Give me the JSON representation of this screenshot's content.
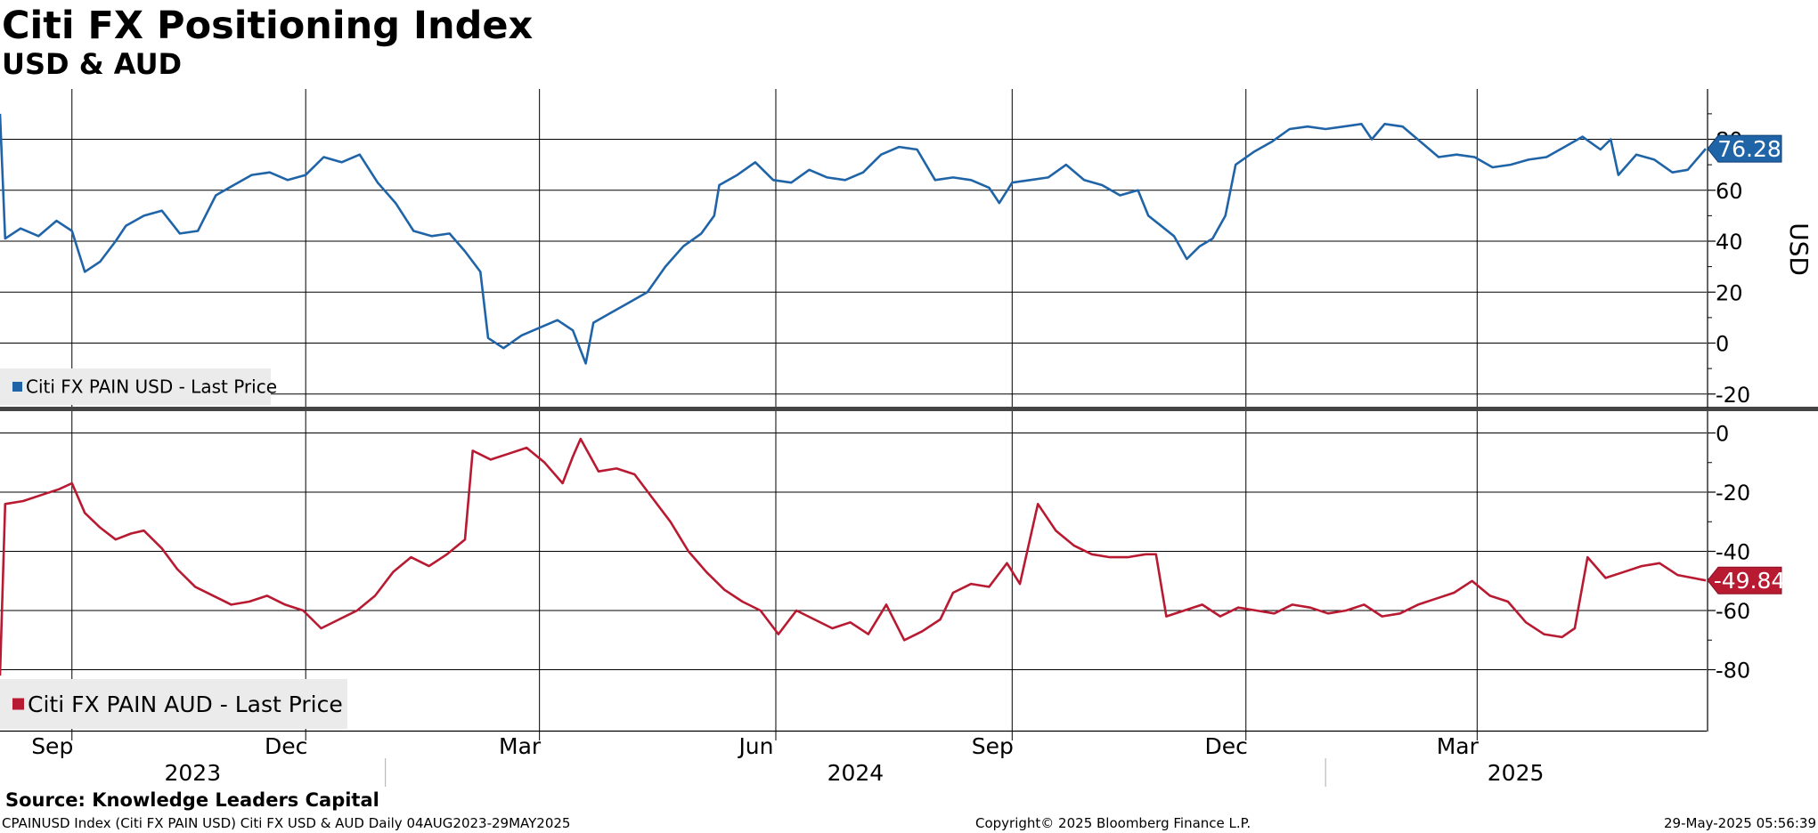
{
  "title": "Citi FX Positioning Index",
  "subtitle": "USD & AUD",
  "source": "Source: Knowledge Leaders Capital",
  "footer": {
    "left": "CPAINUSD Index (Citi FX PAIN USD) Citi FX USD & AUD  Daily 04AUG2023-29MAY2025",
    "center": "Copyright© 2025 Bloomberg Finance L.P.",
    "right": "29-May-2025 05:56:39"
  },
  "chart_data": [
    {
      "type": "line",
      "ylabel": "USD",
      "ylim": [
        -20,
        100
      ],
      "yticks": [
        -20,
        0,
        20,
        40,
        60,
        80
      ],
      "legend": {
        "text": "Citi FX PAIN USD - Last Price",
        "placement": "bottom-left"
      },
      "last_value": "76.28",
      "series": [
        {
          "name": "Citi FX PAIN USD - Last Price",
          "color": "#2064a8",
          "points": [
            [
              "2023-08-04",
              90
            ],
            [
              "2023-08-06",
              41
            ],
            [
              "2023-08-12",
              45
            ],
            [
              "2023-08-19",
              42
            ],
            [
              "2023-08-26",
              48
            ],
            [
              "2023-09-01",
              44
            ],
            [
              "2023-09-06",
              28
            ],
            [
              "2023-09-12",
              32
            ],
            [
              "2023-09-18",
              40
            ],
            [
              "2023-09-22",
              46
            ],
            [
              "2023-09-29",
              50
            ],
            [
              "2023-10-06",
              52
            ],
            [
              "2023-10-13",
              43
            ],
            [
              "2023-10-20",
              44
            ],
            [
              "2023-10-27",
              58
            ],
            [
              "2023-11-03",
              62
            ],
            [
              "2023-11-10",
              66
            ],
            [
              "2023-11-17",
              67
            ],
            [
              "2023-11-24",
              64
            ],
            [
              "2023-12-01",
              66
            ],
            [
              "2023-12-08",
              73
            ],
            [
              "2023-12-15",
              71
            ],
            [
              "2023-12-22",
              74
            ],
            [
              "2023-12-29",
              63
            ],
            [
              "2024-01-05",
              55
            ],
            [
              "2024-01-12",
              44
            ],
            [
              "2024-01-19",
              42
            ],
            [
              "2024-01-26",
              43
            ],
            [
              "2024-02-01",
              36
            ],
            [
              "2024-02-07",
              28
            ],
            [
              "2024-02-10",
              2
            ],
            [
              "2024-02-16",
              -2
            ],
            [
              "2024-02-23",
              3
            ],
            [
              "2024-03-01",
              6
            ],
            [
              "2024-03-08",
              9
            ],
            [
              "2024-03-14",
              5
            ],
            [
              "2024-03-19",
              -8
            ],
            [
              "2024-03-22",
              8
            ],
            [
              "2024-03-29",
              12
            ],
            [
              "2024-04-05",
              16
            ],
            [
              "2024-04-12",
              20
            ],
            [
              "2024-04-19",
              30
            ],
            [
              "2024-04-26",
              38
            ],
            [
              "2024-05-03",
              43
            ],
            [
              "2024-05-08",
              50
            ],
            [
              "2024-05-10",
              62
            ],
            [
              "2024-05-17",
              66
            ],
            [
              "2024-05-24",
              71
            ],
            [
              "2024-05-31",
              64
            ],
            [
              "2024-06-07",
              63
            ],
            [
              "2024-06-14",
              68
            ],
            [
              "2024-06-21",
              65
            ],
            [
              "2024-06-28",
              64
            ],
            [
              "2024-07-05",
              67
            ],
            [
              "2024-07-12",
              74
            ],
            [
              "2024-07-19",
              77
            ],
            [
              "2024-07-26",
              76
            ],
            [
              "2024-08-02",
              64
            ],
            [
              "2024-08-09",
              65
            ],
            [
              "2024-08-16",
              64
            ],
            [
              "2024-08-23",
              61
            ],
            [
              "2024-08-27",
              55
            ],
            [
              "2024-09-01",
              63
            ],
            [
              "2024-09-08",
              64
            ],
            [
              "2024-09-15",
              65
            ],
            [
              "2024-09-22",
              70
            ],
            [
              "2024-09-29",
              64
            ],
            [
              "2024-10-06",
              62
            ],
            [
              "2024-10-13",
              58
            ],
            [
              "2024-10-20",
              60
            ],
            [
              "2024-10-24",
              50
            ],
            [
              "2024-10-29",
              46
            ],
            [
              "2024-11-03",
              42
            ],
            [
              "2024-11-08",
              33
            ],
            [
              "2024-11-13",
              38
            ],
            [
              "2024-11-18",
              41
            ],
            [
              "2024-11-23",
              50
            ],
            [
              "2024-11-27",
              70
            ],
            [
              "2024-12-04",
              75
            ],
            [
              "2024-12-11",
              79
            ],
            [
              "2024-12-18",
              84
            ],
            [
              "2024-12-25",
              85
            ],
            [
              "2025-01-01",
              84
            ],
            [
              "2025-01-08",
              85
            ],
            [
              "2025-01-15",
              86
            ],
            [
              "2025-01-19",
              80
            ],
            [
              "2025-01-24",
              86
            ],
            [
              "2025-01-31",
              85
            ],
            [
              "2025-02-07",
              79
            ],
            [
              "2025-02-14",
              73
            ],
            [
              "2025-02-21",
              74
            ],
            [
              "2025-02-28",
              73
            ],
            [
              "2025-03-07",
              69
            ],
            [
              "2025-03-14",
              70
            ],
            [
              "2025-03-21",
              72
            ],
            [
              "2025-03-28",
              73
            ],
            [
              "2025-04-04",
              77
            ],
            [
              "2025-04-11",
              81
            ],
            [
              "2025-04-18",
              76
            ],
            [
              "2025-04-22",
              80
            ],
            [
              "2025-04-25",
              66
            ],
            [
              "2025-05-02",
              74
            ],
            [
              "2025-05-09",
              72
            ],
            [
              "2025-05-16",
              67
            ],
            [
              "2025-05-22",
              68
            ],
            [
              "2025-05-29",
              76.28
            ]
          ]
        }
      ]
    },
    {
      "type": "line",
      "ylim": [
        -100,
        0
      ],
      "yticks": [
        -80,
        -60,
        -40,
        -20,
        0
      ],
      "legend": {
        "text": "Citi FX PAIN AUD - Last Price",
        "placement": "bottom-left"
      },
      "last_value": "-49.84",
      "series": [
        {
          "name": "Citi FX PAIN AUD - Last Price",
          "color": "#b81a32",
          "points": [
            [
              "2023-08-04",
              -82
            ],
            [
              "2023-08-06",
              -24
            ],
            [
              "2023-08-13",
              -23
            ],
            [
              "2023-08-20",
              -21
            ],
            [
              "2023-08-27",
              -19
            ],
            [
              "2023-09-01",
              -17
            ],
            [
              "2023-09-06",
              -27
            ],
            [
              "2023-09-12",
              -32
            ],
            [
              "2023-09-18",
              -36
            ],
            [
              "2023-09-24",
              -34
            ],
            [
              "2023-09-29",
              -33
            ],
            [
              "2023-10-06",
              -39
            ],
            [
              "2023-10-12",
              -46
            ],
            [
              "2023-10-19",
              -52
            ],
            [
              "2023-10-26",
              -55
            ],
            [
              "2023-11-02",
              -58
            ],
            [
              "2023-11-09",
              -57
            ],
            [
              "2023-11-16",
              -55
            ],
            [
              "2023-11-23",
              -58
            ],
            [
              "2023-11-30",
              -60
            ],
            [
              "2023-12-07",
              -66
            ],
            [
              "2023-12-14",
              -63
            ],
            [
              "2023-12-21",
              -60
            ],
            [
              "2023-12-28",
              -55
            ],
            [
              "2024-01-04",
              -47
            ],
            [
              "2024-01-11",
              -42
            ],
            [
              "2024-01-18",
              -45
            ],
            [
              "2024-01-25",
              -41
            ],
            [
              "2024-02-01",
              -36
            ],
            [
              "2024-02-04",
              -6
            ],
            [
              "2024-02-11",
              -9
            ],
            [
              "2024-02-18",
              -7
            ],
            [
              "2024-02-25",
              -5
            ],
            [
              "2024-03-03",
              -10
            ],
            [
              "2024-03-10",
              -17
            ],
            [
              "2024-03-14",
              -8
            ],
            [
              "2024-03-17",
              -2
            ],
            [
              "2024-03-24",
              -13
            ],
            [
              "2024-03-31",
              -12
            ],
            [
              "2024-04-07",
              -14
            ],
            [
              "2024-04-14",
              -22
            ],
            [
              "2024-04-21",
              -30
            ],
            [
              "2024-04-28",
              -40
            ],
            [
              "2024-05-05",
              -47
            ],
            [
              "2024-05-12",
              -53
            ],
            [
              "2024-05-19",
              -57
            ],
            [
              "2024-05-26",
              -60
            ],
            [
              "2024-06-02",
              -68
            ],
            [
              "2024-06-09",
              -60
            ],
            [
              "2024-06-16",
              -63
            ],
            [
              "2024-06-23",
              -66
            ],
            [
              "2024-06-30",
              -64
            ],
            [
              "2024-07-07",
              -68
            ],
            [
              "2024-07-14",
              -58
            ],
            [
              "2024-07-21",
              -70
            ],
            [
              "2024-07-28",
              -67
            ],
            [
              "2024-08-04",
              -63
            ],
            [
              "2024-08-09",
              -54
            ],
            [
              "2024-08-16",
              -51
            ],
            [
              "2024-08-23",
              -52
            ],
            [
              "2024-08-30",
              -44
            ],
            [
              "2024-09-04",
              -51
            ],
            [
              "2024-09-11",
              -24
            ],
            [
              "2024-09-18",
              -33
            ],
            [
              "2024-09-25",
              -38
            ],
            [
              "2024-10-02",
              -41
            ],
            [
              "2024-10-09",
              -42
            ],
            [
              "2024-10-16",
              -42
            ],
            [
              "2024-10-23",
              -41
            ],
            [
              "2024-10-27",
              -41
            ],
            [
              "2024-10-31",
              -62
            ],
            [
              "2024-11-07",
              -60
            ],
            [
              "2024-11-14",
              -58
            ],
            [
              "2024-11-21",
              -62
            ],
            [
              "2024-11-28",
              -59
            ],
            [
              "2024-12-05",
              -60
            ],
            [
              "2024-12-12",
              -61
            ],
            [
              "2024-12-19",
              -58
            ],
            [
              "2024-12-26",
              -59
            ],
            [
              "2025-01-02",
              -61
            ],
            [
              "2025-01-09",
              -60
            ],
            [
              "2025-01-16",
              -58
            ],
            [
              "2025-01-23",
              -62
            ],
            [
              "2025-01-30",
              -61
            ],
            [
              "2025-02-06",
              -58
            ],
            [
              "2025-02-13",
              -56
            ],
            [
              "2025-02-20",
              -54
            ],
            [
              "2025-02-27",
              -50
            ],
            [
              "2025-03-06",
              -55
            ],
            [
              "2025-03-13",
              -57
            ],
            [
              "2025-03-20",
              -64
            ],
            [
              "2025-03-27",
              -68
            ],
            [
              "2025-04-03",
              -69
            ],
            [
              "2025-04-08",
              -66
            ],
            [
              "2025-04-13",
              -42
            ],
            [
              "2025-04-20",
              -49
            ],
            [
              "2025-04-27",
              -47
            ],
            [
              "2025-05-04",
              -45
            ],
            [
              "2025-05-11",
              -44
            ],
            [
              "2025-05-18",
              -48
            ],
            [
              "2025-05-29",
              -49.84
            ]
          ]
        }
      ]
    }
  ],
  "x_axis": {
    "months": [
      {
        "label": "Sep",
        "date": "2023-09-01"
      },
      {
        "label": "Dec",
        "date": "2023-12-01"
      },
      {
        "label": "Mar",
        "date": "2024-03-01"
      },
      {
        "label": "Jun",
        "date": "2024-06-01"
      },
      {
        "label": "Sep",
        "date": "2024-09-01"
      },
      {
        "label": "Dec",
        "date": "2024-12-01"
      },
      {
        "label": "Mar",
        "date": "2025-03-01"
      }
    ],
    "years": [
      {
        "label": "2023",
        "from": "2023-08-04",
        "to": "2024-01-01"
      },
      {
        "label": "2024",
        "from": "2024-01-01",
        "to": "2025-01-01"
      },
      {
        "label": "2025",
        "from": "2025-01-01",
        "to": "2025-05-29"
      }
    ],
    "range": [
      "2023-08-04",
      "2025-05-29"
    ]
  }
}
